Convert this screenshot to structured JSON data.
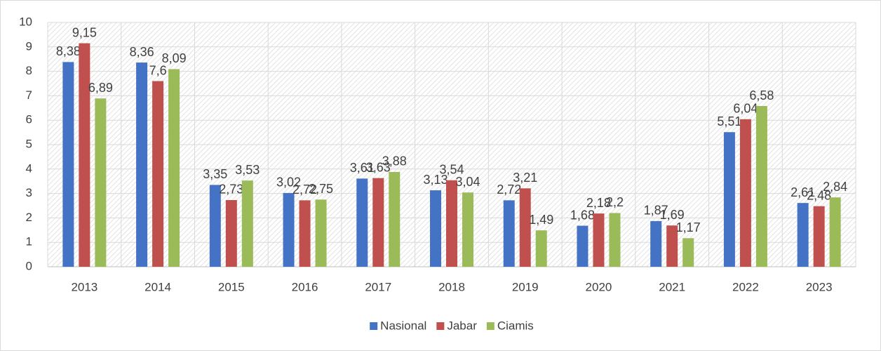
{
  "chart_data": {
    "type": "bar",
    "categories": [
      "2013",
      "2014",
      "2015",
      "2016",
      "2017",
      "2018",
      "2019",
      "2020",
      "2021",
      "2022",
      "2023"
    ],
    "series": [
      {
        "name": "Nasional",
        "color": "#4472c4",
        "values": [
          8.38,
          8.36,
          3.35,
          3.02,
          3.61,
          3.13,
          2.72,
          1.68,
          1.87,
          5.51,
          2.61
        ],
        "value_labels": [
          "8,38",
          "8,36",
          "3,35",
          "3,02",
          "3,61",
          "3,13",
          "2,72",
          "1,68",
          "1,87",
          "5,51",
          "2,61"
        ]
      },
      {
        "name": "Jabar",
        "color": "#c0504d",
        "values": [
          9.15,
          7.6,
          2.73,
          2.72,
          3.63,
          3.54,
          3.21,
          2.18,
          1.69,
          6.04,
          2.48
        ],
        "value_labels": [
          "9,15",
          "7,6",
          "2,73",
          "2,72",
          "3,63",
          "3,54",
          "3,21",
          "2,18",
          "1,69",
          "6,04",
          "2,48"
        ]
      },
      {
        "name": "Ciamis",
        "color": "#9bbb59",
        "values": [
          6.89,
          8.09,
          3.53,
          2.75,
          3.88,
          3.04,
          1.49,
          2.2,
          1.17,
          6.58,
          2.84
        ],
        "value_labels": [
          "6,89",
          "8,09",
          "3,53",
          "2,75",
          "3,88",
          "3,04",
          "1,49",
          "2,2",
          "1,17",
          "6,58",
          "2,84"
        ]
      }
    ],
    "ylim": [
      0,
      10
    ],
    "yticks": [
      0,
      1,
      2,
      3,
      4,
      5,
      6,
      7,
      8,
      9,
      10
    ],
    "grid": true,
    "legend": "bottom"
  }
}
